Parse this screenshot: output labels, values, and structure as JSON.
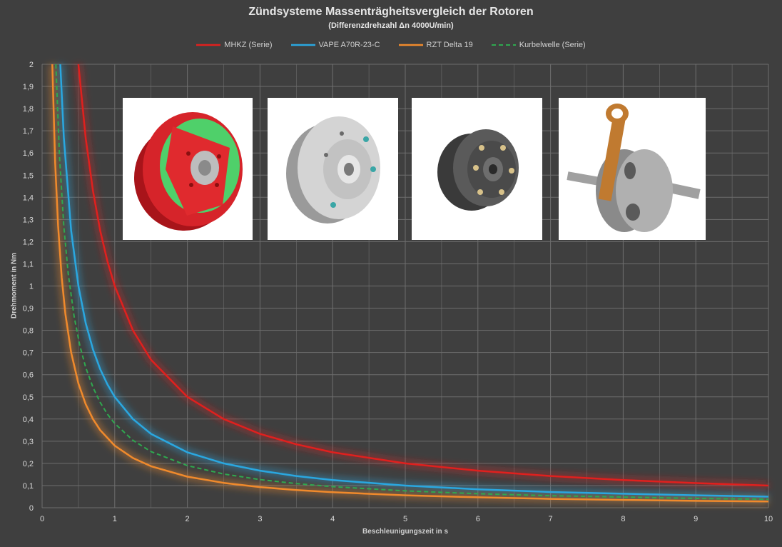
{
  "colors": {
    "background": "#3f3f3f",
    "grid": "#6e6e6e",
    "axis_text": "#d9d9d9"
  },
  "chart_data": {
    "type": "line",
    "title": "Zündsysteme Massenträgheitsvergleich der Rotoren",
    "subtitle": "(Differenzdrehzahl Δn 4000U/min)",
    "xlabel": "Beschleunigungszeit in s",
    "ylabel": "Drehmoment in Nm",
    "xlim": [
      0,
      10
    ],
    "ylim": [
      0,
      2
    ],
    "grid": true,
    "legend_position": "top-center",
    "x_ticks": [
      "0",
      "1",
      "2",
      "3",
      "4",
      "5",
      "6",
      "7",
      "8",
      "9",
      "10"
    ],
    "y_ticks": [
      "0",
      "0,1",
      "0,2",
      "0,3",
      "0,4",
      "0,5",
      "0,6",
      "0,7",
      "0,8",
      "0,9",
      "1",
      "1,1",
      "1,2",
      "1,3",
      "1,4",
      "1,5",
      "1,6",
      "1,7",
      "1,8",
      "1,9",
      "2"
    ],
    "series": [
      {
        "name": "MHKZ (Serie)",
        "color": "#e0201e",
        "dash": false,
        "x": [
          0.5,
          0.6,
          0.7,
          0.8,
          0.9,
          1,
          1.25,
          1.5,
          2,
          2.5,
          3,
          3.5,
          4,
          5,
          6,
          7,
          8,
          9,
          10
        ],
        "y": [
          2.0,
          1.667,
          1.429,
          1.25,
          1.111,
          1.0,
          0.8,
          0.667,
          0.5,
          0.4,
          0.333,
          0.286,
          0.25,
          0.2,
          0.167,
          0.143,
          0.125,
          0.111,
          0.1
        ]
      },
      {
        "name": "VAPE A70R-23-C",
        "color": "#2aa7e0",
        "dash": false,
        "x": [
          0.25,
          0.3,
          0.4,
          0.5,
          0.6,
          0.7,
          0.8,
          0.9,
          1,
          1.25,
          1.5,
          2,
          2.5,
          3,
          3.5,
          4,
          5,
          6,
          7,
          8,
          9,
          10
        ],
        "y": [
          2.0,
          1.667,
          1.25,
          1.0,
          0.833,
          0.714,
          0.625,
          0.556,
          0.5,
          0.4,
          0.333,
          0.25,
          0.2,
          0.167,
          0.143,
          0.125,
          0.1,
          0.083,
          0.071,
          0.063,
          0.056,
          0.05
        ]
      },
      {
        "name": "RZT Delta 19",
        "color": "#f08a2c",
        "dash": false,
        "x": [
          0.14,
          0.18,
          0.22,
          0.27,
          0.32,
          0.4,
          0.5,
          0.6,
          0.7,
          0.8,
          1,
          1.25,
          1.5,
          2,
          2.5,
          3,
          3.5,
          4,
          5,
          6,
          7,
          8,
          9,
          10
        ],
        "y": [
          2.0,
          1.556,
          1.273,
          1.037,
          0.875,
          0.7,
          0.56,
          0.467,
          0.4,
          0.35,
          0.28,
          0.224,
          0.187,
          0.14,
          0.112,
          0.093,
          0.08,
          0.07,
          0.056,
          0.047,
          0.04,
          0.035,
          0.031,
          0.028
        ]
      },
      {
        "name": "Kurbelwelle (Serie)",
        "color": "#2fa84f",
        "dash": true,
        "x": [
          0.19,
          0.24,
          0.3,
          0.36,
          0.44,
          0.52,
          0.6,
          0.7,
          0.8,
          0.9,
          1,
          1.25,
          1.5,
          2,
          2.5,
          3,
          3.5,
          4,
          5,
          6,
          7,
          8,
          9,
          10
        ],
        "y": [
          2.0,
          1.583,
          1.267,
          1.056,
          0.864,
          0.731,
          0.633,
          0.543,
          0.475,
          0.422,
          0.38,
          0.304,
          0.253,
          0.19,
          0.152,
          0.127,
          0.109,
          0.095,
          0.076,
          0.063,
          0.054,
          0.048,
          0.042,
          0.038
        ]
      }
    ]
  }
}
